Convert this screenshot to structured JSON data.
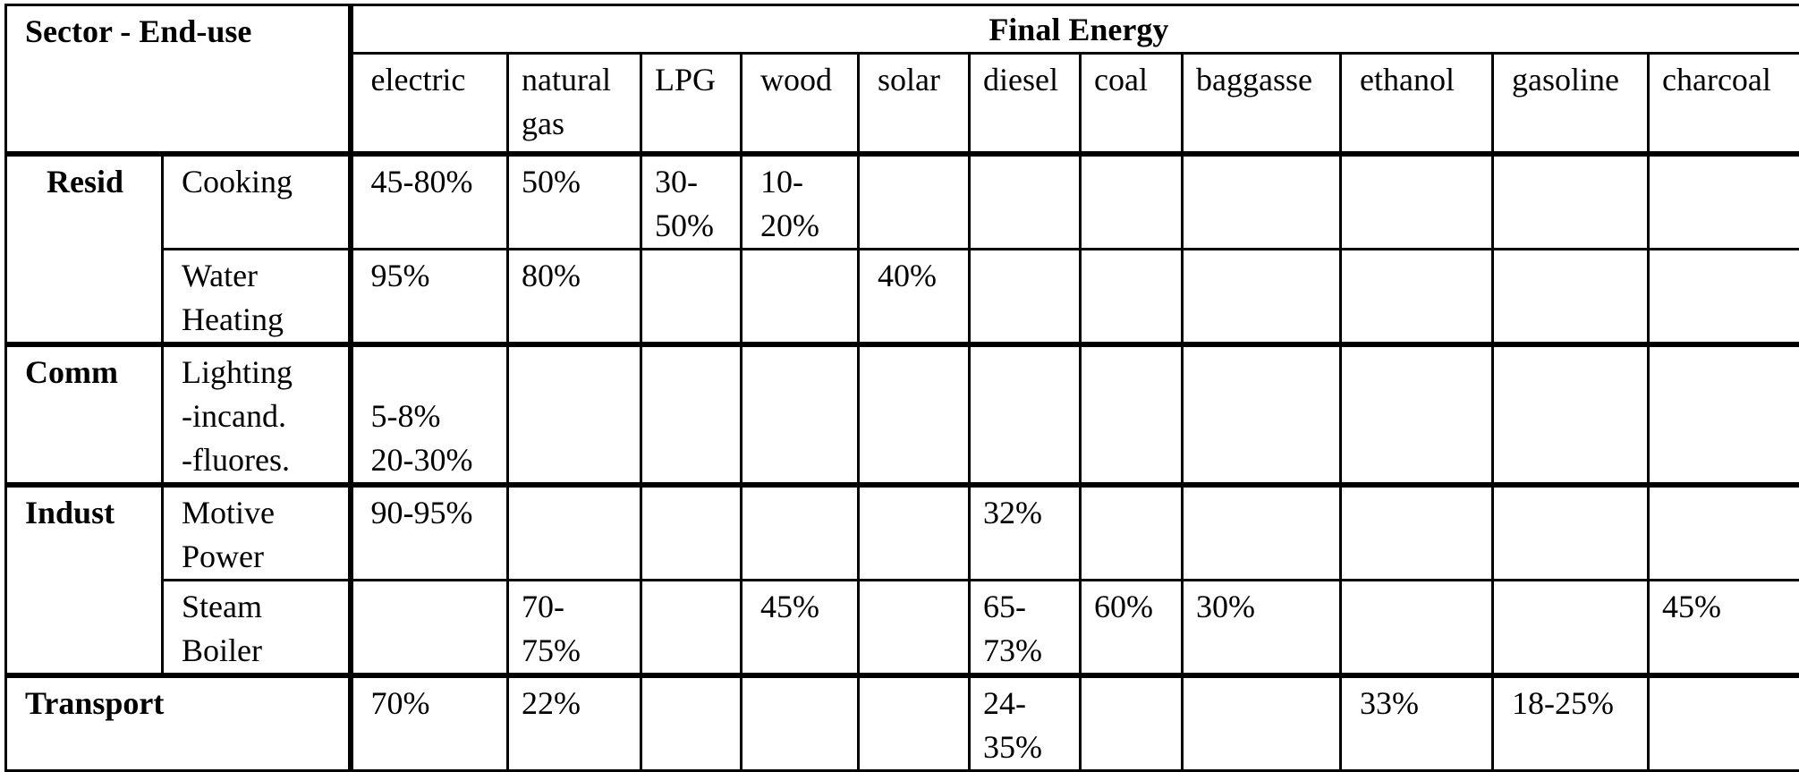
{
  "header": {
    "sector_enduse": "Sector - End-use",
    "final_energy": "Final Energy",
    "fuels": [
      "electric",
      "natural\ngas",
      "LPG",
      "wood",
      "solar",
      "diesel",
      "coal",
      "baggasse",
      "ethanol",
      "gasoline",
      "charcoal"
    ]
  },
  "rows": {
    "resid": {
      "sector": "Resid",
      "cooking": {
        "enduse": "Cooking",
        "electric": "45-80%",
        "natural_gas": "50%",
        "lpg": "30-\n50%",
        "wood": "10-\n20%"
      },
      "water_heating": {
        "enduse": "Water\nHeating",
        "electric": "95%",
        "natural_gas": "80%",
        "solar": "40%"
      }
    },
    "comm": {
      "sector": "Comm",
      "lighting": {
        "enduse": "Lighting\n-incand.\n-fluores.",
        "electric_incand": "5-8%",
        "electric_fluores": "20-30%"
      }
    },
    "indust": {
      "sector": "Indust",
      "motive_power": {
        "enduse": "Motive\nPower",
        "electric": "90-95%",
        "diesel": "32%"
      },
      "steam_boiler": {
        "enduse": "Steam\nBoiler",
        "natural_gas": "70-\n75%",
        "wood": "45%",
        "diesel": "65-\n73%",
        "coal": "60%",
        "baggasse": "30%",
        "charcoal": "45%"
      }
    },
    "transport": {
      "sector": "Transport",
      "electric": "70%",
      "natural_gas": "22%",
      "diesel": "24-\n35%",
      "ethanol": "33%",
      "gasoline": "18-25%"
    }
  }
}
